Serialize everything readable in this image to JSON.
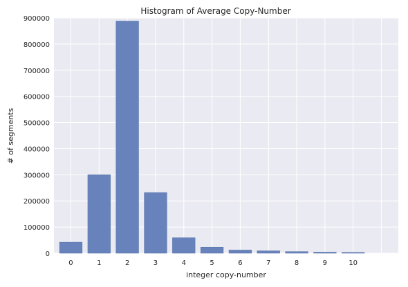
{
  "chart_data": {
    "type": "bar",
    "title": "Histogram of Average Copy-Number",
    "xlabel": "integer copy-number",
    "ylabel": "# of segments",
    "categories": [
      "0",
      "1",
      "2",
      "3",
      "4",
      "5",
      "6",
      "7",
      "8",
      "9",
      "10"
    ],
    "values": [
      42000,
      300000,
      888000,
      232000,
      59000,
      23000,
      12000,
      9000,
      6000,
      4000,
      3000
    ],
    "x_range": [
      -0.6,
      11.6
    ],
    "ylim": [
      0,
      900000
    ],
    "yticks": [
      0,
      100000,
      200000,
      300000,
      400000,
      500000,
      600000,
      700000,
      800000,
      900000
    ],
    "ytick_labels": [
      "0",
      "100000",
      "200000",
      "300000",
      "400000",
      "500000",
      "600000",
      "700000",
      "800000",
      "900000"
    ],
    "grid": true,
    "style": "seaborn darkgrid",
    "colors": {
      "bar": "#6883bb",
      "bar_edge": "#5a76ad",
      "plot_background": "#eaeaf2",
      "grid": "#ffffff",
      "text": "#262626"
    }
  }
}
